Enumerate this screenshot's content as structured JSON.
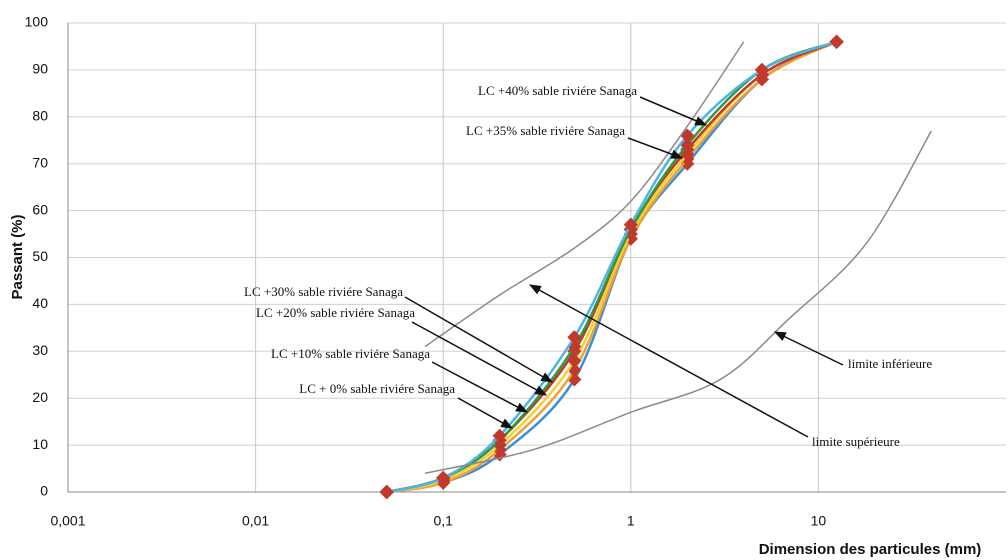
{
  "chart_data": {
    "type": "line",
    "x_label": "Dimension des particules (mm)",
    "y_label": "Passant (%)",
    "xscale": "log",
    "xlim": [
      0.001,
      100
    ],
    "xticks": [
      {
        "value": 0.001,
        "label": "0,001"
      },
      {
        "value": 0.01,
        "label": "0,01"
      },
      {
        "value": 0.1,
        "label": "0,1"
      },
      1,
      10
    ],
    "ylim": [
      0,
      100
    ],
    "yticks": [
      0,
      10,
      20,
      30,
      40,
      50,
      60,
      70,
      80,
      90,
      100
    ],
    "grid": true,
    "marker_color": "#c0392b",
    "series": [
      {
        "name": "LC + 0% sable riviére Sanaga",
        "color": "#3a8fd8",
        "x": [
          0.05,
          0.1,
          0.2,
          0.5,
          1,
          2,
          5,
          12.5
        ],
        "values": [
          0,
          2,
          8,
          24,
          54,
          70,
          88,
          96
        ]
      },
      {
        "name": "LC +10% sable riviére Sanaga",
        "color": "#f0a030",
        "x": [
          0.05,
          0.1,
          0.2,
          0.5,
          1,
          2,
          5,
          12.5
        ],
        "values": [
          0,
          2,
          9,
          26,
          54,
          71,
          88,
          96
        ]
      },
      {
        "name": "LC +20% sable riviére Sanaga",
        "color": "#f5d033",
        "x": [
          0.05,
          0.1,
          0.2,
          0.5,
          1,
          2,
          5,
          12.5
        ],
        "values": [
          0,
          2.5,
          10,
          28,
          55,
          72,
          89,
          96
        ]
      },
      {
        "name": "LC +30% sable riviére Sanaga",
        "color": "#c0392b",
        "x": [
          0.05,
          0.1,
          0.2,
          0.5,
          1,
          2,
          5,
          12.5
        ],
        "values": [
          0,
          3,
          11,
          30,
          56,
          73,
          89,
          96
        ]
      },
      {
        "name": "LC +35% sable riviére Sanaga",
        "color": "#2e9a3a",
        "x": [
          0.05,
          0.1,
          0.2,
          0.5,
          1,
          2,
          5,
          12.5
        ],
        "values": [
          0,
          3,
          11,
          31,
          56,
          74,
          90,
          96
        ]
      },
      {
        "name": "LC +40% sable riviére Sanaga",
        "color": "#4fb3e8",
        "x": [
          0.05,
          0.1,
          0.2,
          0.5,
          1,
          2,
          5,
          12.5
        ],
        "values": [
          0,
          3,
          12,
          33,
          57,
          76,
          90,
          96
        ]
      },
      {
        "name": "limite supérieure",
        "color": "#8a8a8a",
        "x": [
          0.08,
          0.2,
          0.5,
          1,
          2,
          4
        ],
        "values": [
          31,
          42,
          52,
          62,
          78,
          96
        ]
      },
      {
        "name": "limite inférieure",
        "color": "#8a8a8a",
        "x": [
          0.08,
          0.3,
          1,
          3,
          7,
          18,
          40
        ],
        "values": [
          4,
          9,
          17,
          24,
          37,
          53,
          77
        ]
      }
    ]
  }
}
